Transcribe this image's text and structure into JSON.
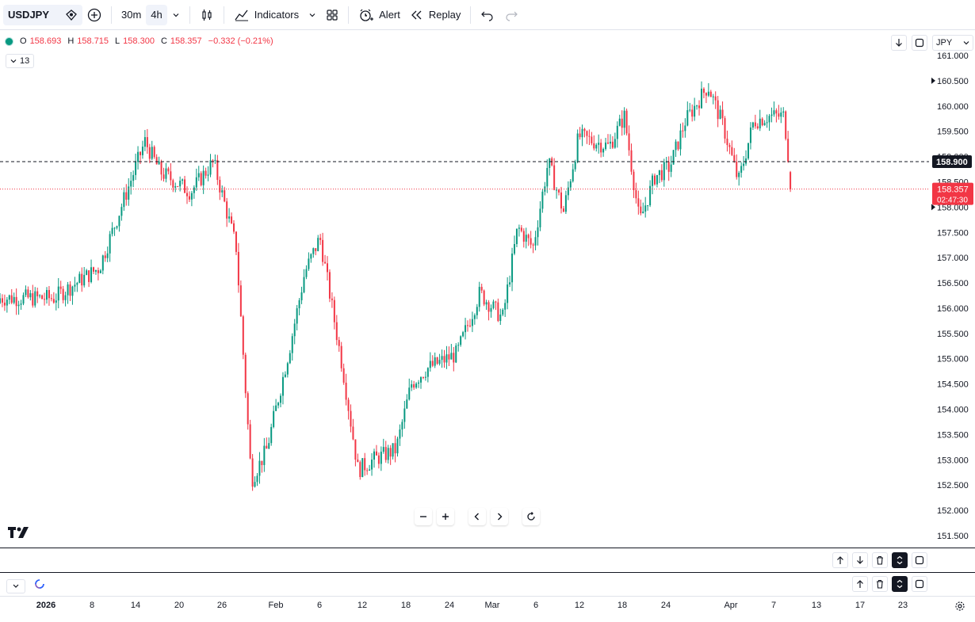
{
  "toolbar": {
    "symbol": "USDJPY",
    "intervals": [
      "30m",
      "4h"
    ],
    "indicators_label": "Indicators",
    "alert_label": "Alert",
    "replay_label": "Replay"
  },
  "legend": {
    "open_key": "O",
    "open": "158.693",
    "high_key": "H",
    "high": "158.715",
    "low_key": "L",
    "low": "158.300",
    "close_key": "C",
    "close": "158.357",
    "change": "−0.332 (−0.21%)",
    "indicator_count": "13"
  },
  "currency": "JPY",
  "colors": {
    "up": "#089981",
    "down": "#f23645",
    "hline": "#131722",
    "price_line": "#f23645"
  },
  "chart_data": {
    "type": "candlestick",
    "symbol": "USDJPY",
    "timeframe": "4h",
    "x": [
      "2026-01-02",
      "2026-01-08",
      "2026-01-14",
      "2026-01-16",
      "2026-01-20",
      "2026-01-23",
      "2026-01-26",
      "2026-01-28",
      "2026-01-30",
      "2026-02-02",
      "2026-02-04",
      "2026-02-06",
      "2026-02-09",
      "2026-02-11",
      "2026-02-13",
      "2026-02-16",
      "2026-02-18",
      "2026-02-20",
      "2026-02-24",
      "2026-02-27",
      "2026-03-02",
      "2026-03-04",
      "2026-03-06",
      "2026-03-08",
      "2026-03-10",
      "2026-03-12",
      "2026-03-16",
      "2026-03-18",
      "2026-03-20",
      "2026-03-22",
      "2026-03-24",
      "2026-03-26",
      "2026-03-29",
      "2026-03-31",
      "2026-04-02",
      "2026-04-04",
      "2026-04-06",
      "2026-04-08",
      "2026-04-09"
    ],
    "close": [
      156.2,
      156.8,
      159.3,
      158.7,
      158.3,
      158.9,
      157.2,
      152.6,
      153.2,
      155.2,
      156.7,
      157.4,
      154.8,
      152.8,
      153.0,
      153.2,
      154.5,
      154.8,
      155.1,
      156.3,
      155.8,
      157.6,
      157.2,
      158.9,
      157.9,
      159.4,
      159.2,
      159.8,
      157.7,
      158.6,
      158.8,
      159.7,
      160.4,
      159.6,
      158.5,
      159.7,
      159.8,
      159.8,
      158.357
    ],
    "price_ticks": [
      "151.500",
      "152.000",
      "152.500",
      "153.000",
      "153.500",
      "154.000",
      "154.500",
      "155.000",
      "155.500",
      "156.000",
      "156.500",
      "157.000",
      "157.500",
      "158.000",
      "158.500",
      "159.000",
      "159.500",
      "160.000",
      "160.500",
      "161.000"
    ],
    "horizontal_line": {
      "price": "158.900"
    },
    "last_price": {
      "price": "158.357",
      "countdown": "02:47:30"
    },
    "ylim": [
      151.35,
      161.05
    ],
    "time_labels": [
      {
        "label": "2026",
        "bold": true
      },
      {
        "label": "8"
      },
      {
        "label": "14"
      },
      {
        "label": "20"
      },
      {
        "label": "26"
      },
      {
        "label": "Feb",
        "bold": false
      },
      {
        "label": "6"
      },
      {
        "label": "12"
      },
      {
        "label": "18"
      },
      {
        "label": "24"
      },
      {
        "label": "Mar"
      },
      {
        "label": "6"
      },
      {
        "label": "12"
      },
      {
        "label": "18"
      },
      {
        "label": "24"
      },
      {
        "label": "Apr"
      },
      {
        "label": "7"
      },
      {
        "label": "13"
      },
      {
        "label": "17"
      },
      {
        "label": "23"
      }
    ],
    "grid": false
  }
}
